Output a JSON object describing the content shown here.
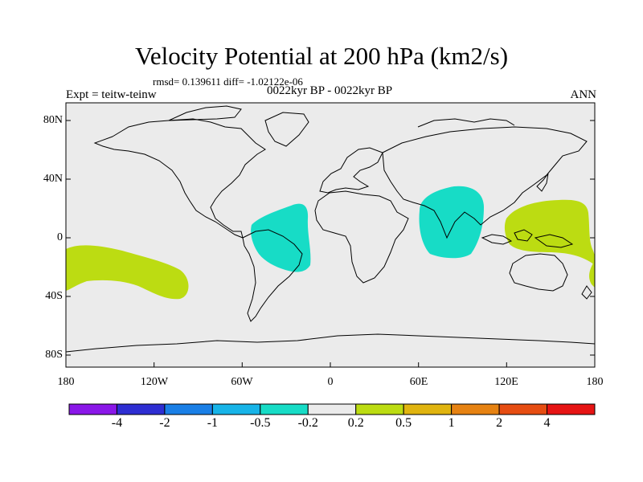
{
  "title": "Velocity Potential at 200 hPa (km2/s)",
  "stats": "rmsd= 0.139611 diff= -1.02122e-06",
  "experiment": "Expt = teitw-teinw",
  "period": "0022kyr BP - 0022kyr BP",
  "season": "ANN",
  "map": {
    "lon_ticks": [
      "180",
      "120W",
      "60W",
      "0",
      "60E",
      "120E",
      "180"
    ],
    "lat_ticks": [
      "80N",
      "40N",
      "0",
      "40S",
      "80S"
    ],
    "land_fill": "#ebebeb",
    "coast_color": "#000000"
  },
  "colorbar": {
    "colors": [
      "#8a17e8",
      "#2e2ed2",
      "#1a7fe6",
      "#17b4e8",
      "#17dcc6",
      "#ebebeb",
      "#bcdc12",
      "#e0b40f",
      "#e68212",
      "#e64d12",
      "#e61414"
    ],
    "labels": [
      "-4",
      "-2",
      "-1",
      "-0.5",
      "-0.2",
      "0.2",
      "0.5",
      "1",
      "2",
      "4"
    ]
  }
}
